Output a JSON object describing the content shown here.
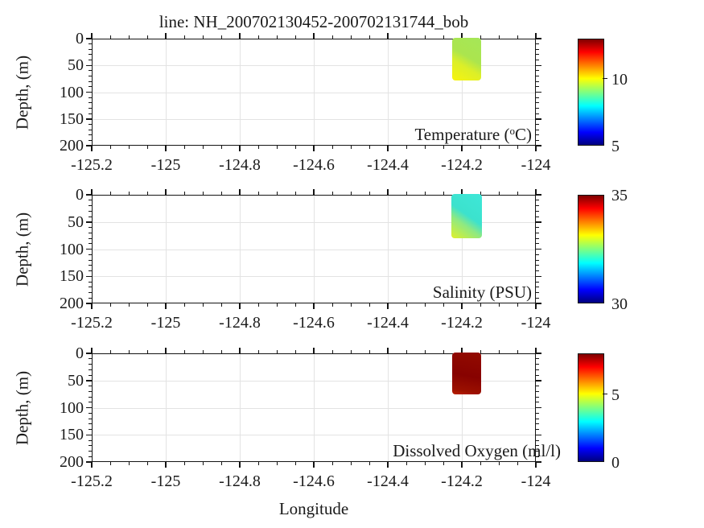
{
  "figure": {
    "title": "line: NH_200702130452-200702131744_bob",
    "xlabel": "Longitude",
    "ylabel": "Depth, (m)"
  },
  "xticks": [
    "-125.2",
    "-125",
    "-124.8",
    "-124.6",
    "-124.4",
    "-124.2",
    "-124"
  ],
  "yticks": [
    "0",
    "50",
    "100",
    "150",
    "200"
  ],
  "panels": [
    {
      "name": "temperature",
      "label_prefix": "Temperature (",
      "label_sup": "o",
      "label_suffix": "C)",
      "patch": {
        "colors": [
          "#a5e658",
          "#abe54e",
          "#dcef28",
          "#f8f40e"
        ]
      },
      "colorbar": {
        "min": 5,
        "max": 13,
        "ticks": [
          {
            "value": 10,
            "label": "10"
          },
          {
            "value": 5,
            "label": "5"
          }
        ]
      }
    },
    {
      "name": "salinity",
      "label_prefix": "Salinity (PSU)",
      "label_sup": "",
      "label_suffix": "",
      "patch": {
        "colors": [
          "#3ee7d8",
          "#3ce2cd",
          "#8fe981",
          "#e0f02a"
        ]
      },
      "colorbar": {
        "min": 30,
        "max": 35,
        "ticks": [
          {
            "value": 35,
            "label": "35"
          },
          {
            "value": 30,
            "label": "30"
          }
        ]
      }
    },
    {
      "name": "dissolved-oxygen",
      "label_prefix": "Dissolved Oxygen (ml/l)",
      "label_sup": "",
      "label_suffix": "",
      "patch": {
        "colors": [
          "#930b00",
          "#870200",
          "#9b1000",
          "#bb2000"
        ]
      },
      "colorbar": {
        "min": 0,
        "max": 8,
        "ticks": [
          {
            "value": 5,
            "label": "5"
          },
          {
            "value": 0,
            "label": "0"
          }
        ]
      }
    }
  ],
  "chart_data": [
    {
      "type": "heatmap",
      "title": "line: NH_200702130452-200702131744_bob",
      "panel": "Temperature (oC)",
      "xlabel": "Longitude",
      "ylabel": "Depth, (m)",
      "xlim": [
        -125.2,
        -124.0
      ],
      "ylim": [
        200,
        0
      ],
      "xticks": [
        -125.2,
        -125,
        -124.8,
        -124.6,
        -124.4,
        -124.2,
        -124
      ],
      "yticks": [
        0,
        50,
        100,
        150,
        200
      ],
      "grid": true,
      "colormap": "jet",
      "colorbar_range": [
        5,
        13
      ],
      "colorbar_ticks": [
        5,
        10
      ],
      "data_extent": {
        "longitude": [
          -124.22,
          -124.14
        ],
        "depth_m": [
          0,
          75
        ]
      },
      "approx_values": {
        "near_surface": 9.7,
        "at_depth": 10.4
      }
    },
    {
      "type": "heatmap",
      "panel": "Salinity (PSU)",
      "xlabel": "Longitude",
      "ylabel": "Depth, (m)",
      "xlim": [
        -125.2,
        -124.0
      ],
      "ylim": [
        200,
        0
      ],
      "xticks": [
        -125.2,
        -125,
        -124.8,
        -124.6,
        -124.4,
        -124.2,
        -124
      ],
      "yticks": [
        0,
        50,
        100,
        150,
        200
      ],
      "grid": true,
      "colormap": "jet",
      "colorbar_range": [
        30,
        35
      ],
      "colorbar_ticks": [
        30,
        35
      ],
      "data_extent": {
        "longitude": [
          -124.22,
          -124.14
        ],
        "depth_m": [
          0,
          78
        ]
      },
      "approx_values": {
        "near_surface": 32.1,
        "at_depth": 33.2
      }
    },
    {
      "type": "heatmap",
      "panel": "Dissolved Oxygen (ml/l)",
      "xlabel": "Longitude",
      "ylabel": "Depth, (m)",
      "xlim": [
        -125.2,
        -124.0
      ],
      "ylim": [
        200,
        0
      ],
      "xticks": [
        -125.2,
        -125,
        -124.8,
        -124.6,
        -124.4,
        -124.2,
        -124
      ],
      "yticks": [
        0,
        50,
        100,
        150,
        200
      ],
      "grid": true,
      "colormap": "jet",
      "colorbar_range": [
        0,
        8
      ],
      "colorbar_ticks": [
        0,
        5
      ],
      "data_extent": {
        "longitude": [
          -124.22,
          -124.14
        ],
        "depth_m": [
          0,
          73
        ]
      },
      "approx_values": {
        "near_surface": 7.7,
        "at_depth": 7.6
      }
    }
  ]
}
